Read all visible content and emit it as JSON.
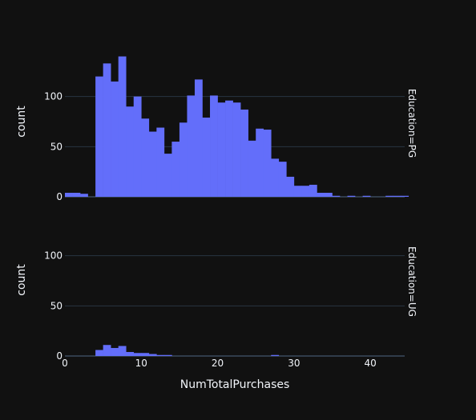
{
  "chart_data": {
    "type": "bar",
    "subtype": "histogram-faceted",
    "xlabel": "NumTotalPurchases",
    "ylabel": "count",
    "xlim": [
      0,
      44.5
    ],
    "ylim": [
      0,
      150
    ],
    "x_ticks": [
      0,
      10,
      20,
      30,
      40
    ],
    "y_ticks": [
      0,
      50,
      100
    ],
    "bin_start": 0,
    "bin_width": 1,
    "grid": true,
    "bar_color": "#636efa",
    "background_color": "#111111",
    "grid_color": "#283442",
    "facets": [
      {
        "label": "Education=PG",
        "values": [
          4,
          4,
          3,
          0,
          120,
          133,
          115,
          140,
          90,
          100,
          78,
          65,
          69,
          43,
          55,
          74,
          101,
          117,
          79,
          101,
          94,
          96,
          94,
          87,
          56,
          68,
          67,
          38,
          35,
          20,
          11,
          11,
          12,
          4,
          4,
          1,
          0,
          1,
          0,
          1,
          0,
          0,
          1,
          1,
          1
        ]
      },
      {
        "label": "Education=UG",
        "values": [
          0,
          0,
          0,
          0,
          6,
          11,
          8,
          10,
          4,
          3,
          3,
          2,
          1,
          1,
          0,
          0,
          0,
          0,
          0,
          0,
          0,
          0,
          0,
          0,
          0,
          0,
          0,
          1,
          0,
          0,
          0,
          0,
          0,
          0,
          0,
          0,
          0,
          0,
          0,
          0,
          0,
          0,
          0,
          0,
          0
        ]
      }
    ]
  }
}
